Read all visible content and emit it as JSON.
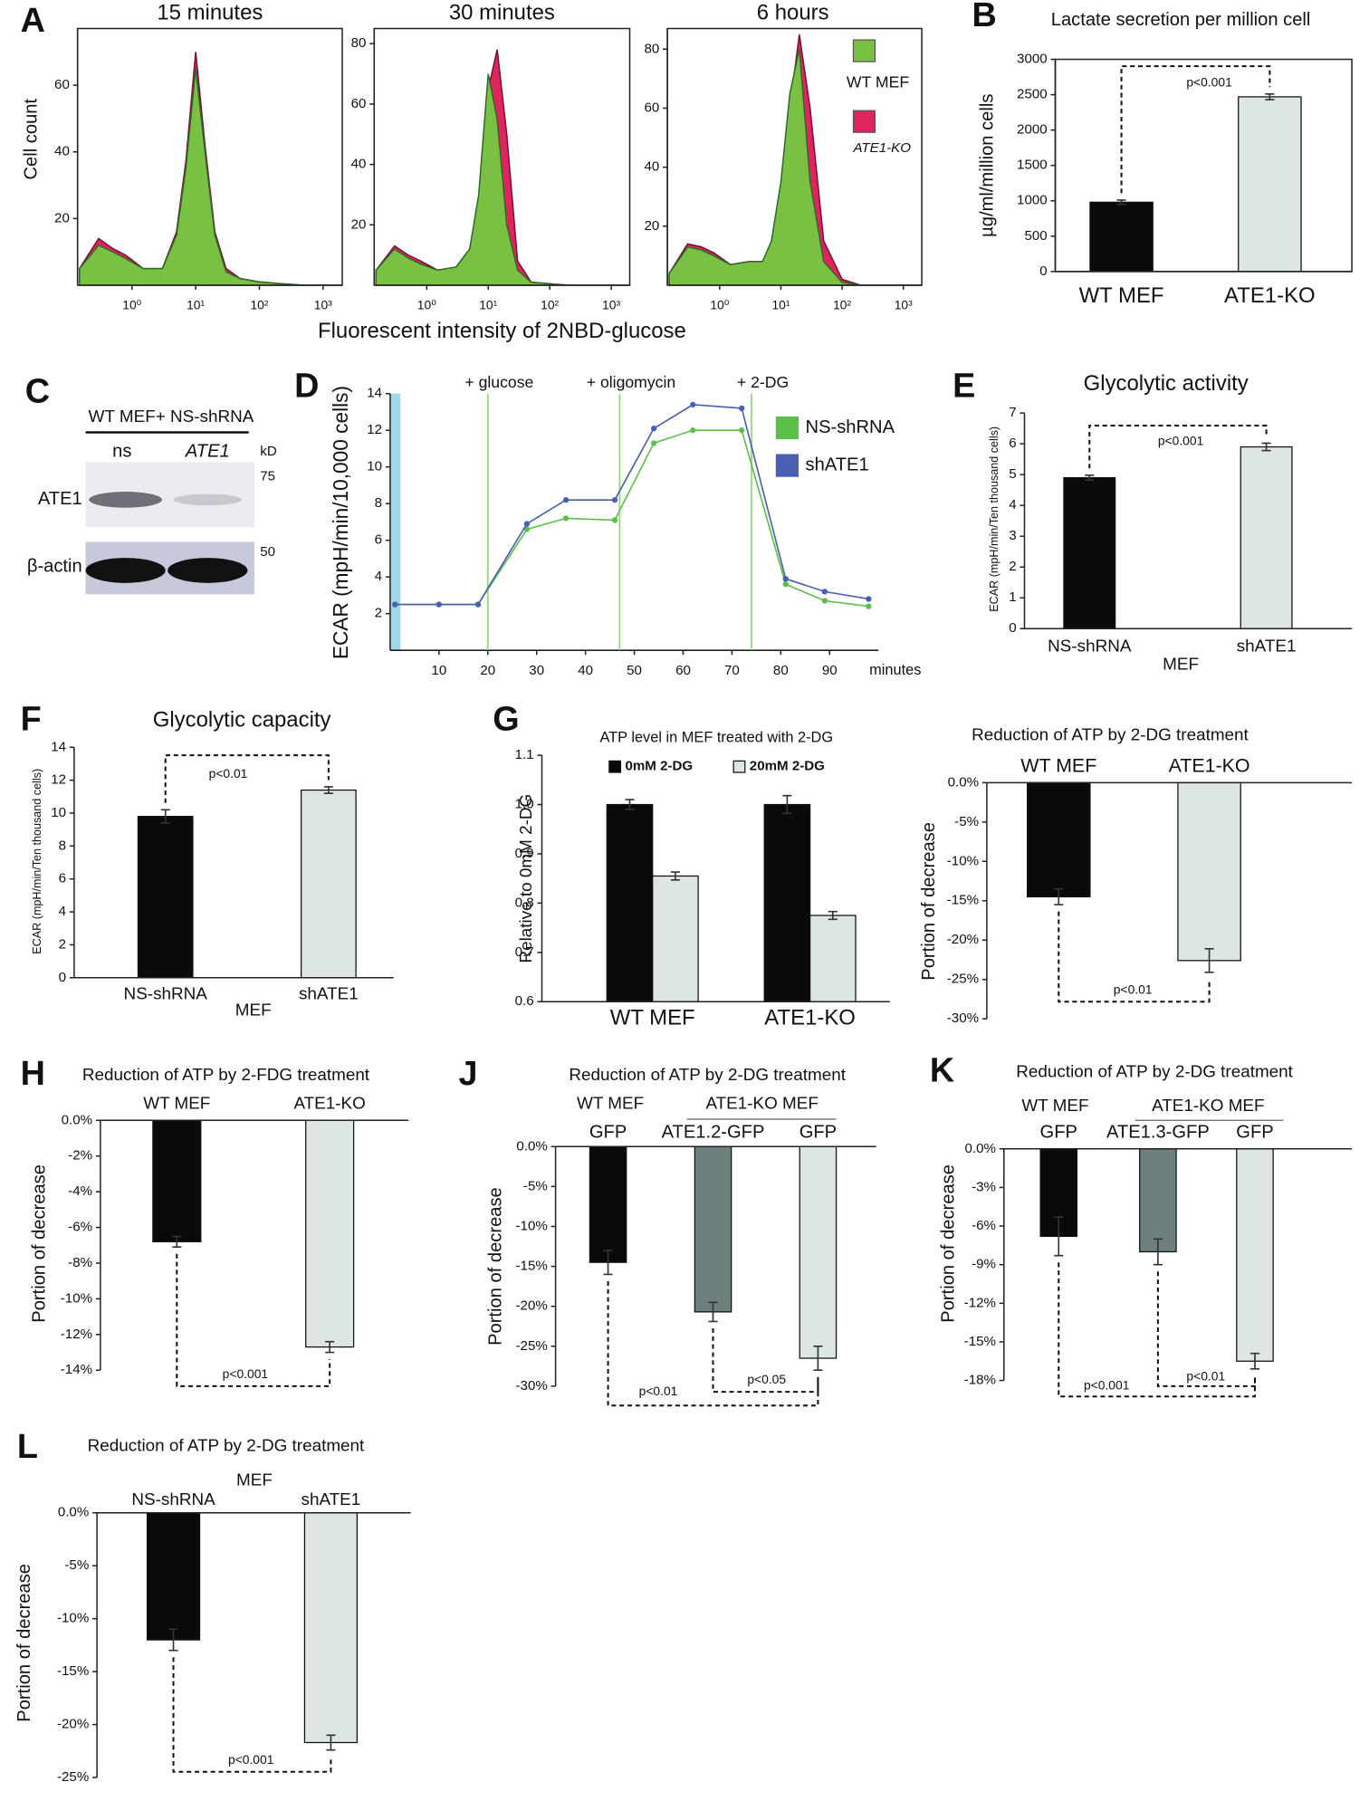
{
  "chart_data": [
    {
      "panel": "A",
      "type": "area",
      "title": "15 minutes",
      "ylabel": "Cell count",
      "xscale": "log",
      "x": [
        0.15,
        0.3,
        0.5,
        0.8,
        1.5,
        3,
        5,
        7,
        10,
        14,
        20,
        30,
        50,
        100,
        200,
        500,
        2000
      ],
      "series": [
        {
          "color": "#7ac143",
          "values": [
            5,
            12,
            10,
            8,
            5,
            5,
            15,
            35,
            65,
            40,
            15,
            4,
            2,
            1,
            0.5,
            0,
            0
          ]
        },
        {
          "color": "#e0245e",
          "values": [
            5,
            14,
            11,
            9,
            5,
            5,
            16,
            37,
            70,
            42,
            16,
            5,
            2,
            1,
            0.5,
            0,
            0
          ]
        }
      ],
      "xlim": [
        0.14,
        2000
      ],
      "xticks": [
        {
          "value": 1,
          "label": "10⁰"
        },
        {
          "value": 10,
          "label": "10¹"
        },
        {
          "value": 100,
          "label": "10²"
        },
        {
          "value": 1000,
          "label": "10³"
        }
      ],
      "ylim": [
        0,
        77
      ],
      "yticks": [
        20,
        40,
        60
      ]
    },
    {
      "type": "area",
      "title": "30 minutes",
      "xlabel": "Fluorescent intensity of 2NBD-glucose",
      "xscale": "log",
      "x": [
        0.15,
        0.3,
        0.5,
        0.8,
        1.5,
        3,
        5,
        7,
        10,
        14,
        20,
        30,
        50,
        100,
        200,
        500,
        2000
      ],
      "series": [
        {
          "color": "#7ac143",
          "values": [
            5,
            12,
            9,
            7,
            5,
            6,
            12,
            30,
            70,
            55,
            20,
            5,
            1,
            0.5,
            0,
            0,
            0
          ]
        },
        {
          "color": "#e0245e",
          "values": [
            5,
            13,
            10,
            8,
            5,
            6,
            12,
            28,
            65,
            78,
            50,
            8,
            1,
            0.5,
            0,
            0,
            0
          ]
        }
      ],
      "xlim": [
        0.14,
        2000
      ],
      "xticks": [
        {
          "value": 1,
          "label": "10⁰"
        },
        {
          "value": 10,
          "label": "10¹"
        },
        {
          "value": 100,
          "label": "10²"
        },
        {
          "value": 1000,
          "label": "10³"
        }
      ],
      "ylim": [
        0,
        85
      ],
      "yticks": [
        20,
        40,
        60,
        80
      ]
    },
    {
      "type": "area",
      "title": "6 hours",
      "xscale": "log",
      "x": [
        0.15,
        0.3,
        0.5,
        0.8,
        1.5,
        3,
        5,
        7,
        10,
        14,
        20,
        30,
        50,
        100,
        200,
        500,
        2000
      ],
      "series": [
        {
          "name": "WT MEF",
          "color": "#7ac143",
          "values": [
            4,
            13,
            12,
            10,
            7,
            8,
            8,
            15,
            35,
            65,
            80,
            35,
            8,
            1,
            0,
            0,
            0
          ]
        },
        {
          "name": "ATE1-KO",
          "color": "#e0245e",
          "values": [
            4,
            14,
            13,
            11,
            7,
            8,
            8,
            13,
            30,
            60,
            85,
            60,
            15,
            2,
            0,
            0,
            0
          ]
        }
      ],
      "xlim": [
        0.14,
        2000
      ],
      "xticks": [
        {
          "value": 1,
          "label": "10⁰"
        },
        {
          "value": 10,
          "label": "10¹"
        },
        {
          "value": 100,
          "label": "10²"
        },
        {
          "value": 1000,
          "label": "10³"
        }
      ],
      "ylim": [
        0,
        87
      ],
      "yticks": [
        20,
        40,
        60,
        80
      ]
    },
    {
      "panel": "B",
      "type": "bar",
      "title": "Lactate secretion per million cell",
      "ylabel": "µg/ml/million cells",
      "categories": [
        "WT MEF",
        "ATE1-KO"
      ],
      "values": [
        980,
        2470
      ],
      "errors": [
        30,
        40
      ],
      "colors": [
        "#0a0a0a",
        "#dde6e3"
      ],
      "ylim": [
        0,
        3000
      ],
      "yticks": [
        0,
        500,
        1000,
        1500,
        2000,
        2500,
        3000
      ],
      "annotations": [
        "p<0.001"
      ]
    },
    {
      "panel": "C",
      "type": "blot",
      "header": "WT MEF+ NS-shRNA",
      "lanes": [
        "ns",
        "ATE1"
      ],
      "unit": "kD",
      "markers": [
        75,
        50
      ],
      "rows": [
        "ATE1",
        "β-actin"
      ]
    },
    {
      "panel": "D",
      "type": "line",
      "ylabel": "ECAR (mpH/min/10,000 cells)",
      "xlabel": "minutes",
      "x": [
        1,
        10,
        18,
        28,
        36,
        46,
        54,
        62,
        72,
        81,
        89,
        98
      ],
      "series": [
        {
          "name": "NS-shRNA",
          "color": "#5cbf4a",
          "values": [
            2.5,
            2.5,
            2.5,
            6.6,
            7.2,
            7.1,
            11.3,
            12.0,
            12.0,
            3.6,
            2.7,
            2.4
          ]
        },
        {
          "name": "shATE1",
          "color": "#4a5fb4",
          "values": [
            2.5,
            2.5,
            2.5,
            6.9,
            8.2,
            8.2,
            12.1,
            13.4,
            13.2,
            3.9,
            3.2,
            2.8
          ]
        }
      ],
      "annotations": [
        {
          "text": "+ glucose",
          "x": 20
        },
        {
          "text": "+ oligomycin",
          "x": 47
        },
        {
          "text": "+ 2-DG",
          "x": 74
        }
      ],
      "xlim": [
        0,
        100
      ],
      "xticks": [
        10,
        20,
        30,
        40,
        50,
        60,
        70,
        80,
        90
      ],
      "ylim": [
        0,
        14
      ],
      "yticks": [
        2,
        4,
        6,
        8,
        10,
        12,
        14
      ]
    },
    {
      "panel": "E",
      "type": "bar",
      "title": "Glycolytic activity",
      "ylabel": "ECAR (mpH/min/Ten thousand cells)",
      "categories": [
        "NS-shRNA",
        "shATE1"
      ],
      "group_labels": [
        "MEF"
      ],
      "values": [
        4.9,
        5.9
      ],
      "errors": [
        0.08,
        0.12
      ],
      "colors": [
        "#0a0a0a",
        "#dde6e3"
      ],
      "ylim": [
        0,
        7
      ],
      "yticks": [
        0,
        1,
        2,
        3,
        4,
        5,
        6,
        7
      ],
      "annotations": [
        "p<0.001"
      ]
    },
    {
      "panel": "F",
      "type": "bar",
      "title": "Glycolytic capacity",
      "ylabel": "ECAR (mpH/min/Ten thousand cells)",
      "categories": [
        "NS-shRNA",
        "shATE1"
      ],
      "group_labels": [
        "MEF"
      ],
      "values": [
        9.8,
        11.4
      ],
      "errors": [
        0.4,
        0.2
      ],
      "colors": [
        "#0a0a0a",
        "#dde6e3"
      ],
      "ylim": [
        0,
        14
      ],
      "yticks": [
        0,
        2,
        4,
        6,
        8,
        10,
        12,
        14
      ],
      "annotations": [
        "p<0.01"
      ]
    },
    {
      "panel": "G",
      "type": "bar",
      "title": "ATP level in MEF treated with 2-DG",
      "ylabel": "Relative to 0mM 2-DG",
      "categories": [
        "WT MEF",
        "ATE1-KO"
      ],
      "series": [
        {
          "name": "0mM 2-DG",
          "color": "#0a0a0a",
          "values": [
            1.0,
            1.0
          ],
          "errors": [
            0.01,
            0.018
          ]
        },
        {
          "name": "20mM 2-DG",
          "color": "#dde6e3",
          "values": [
            0.855,
            0.775
          ],
          "errors": [
            0.008,
            0.008
          ]
        }
      ],
      "ylim": [
        0.6,
        1.1
      ],
      "yticks": [
        0.6,
        0.7,
        0.8,
        0.9,
        {
          "value": 1,
          "label": "1.0"
        },
        1.1
      ]
    },
    {
      "type": "bar",
      "title": "Reduction of ATP by 2-DG treatment",
      "ylabel": "Portion of decrease",
      "categories": [
        "WT MEF",
        "ATE1-KO"
      ],
      "values": [
        -14.5,
        -22.6
      ],
      "errors": [
        1.0,
        1.5
      ],
      "colors": [
        "#0a0a0a",
        "#dde6e3"
      ],
      "ylim": [
        -30,
        0
      ],
      "yticks": [
        {
          "value": 0,
          "label": "0.0%"
        },
        {
          "value": -5,
          "label": "-5%"
        },
        {
          "value": -10,
          "label": "-10%"
        },
        {
          "value": -15,
          "label": "-15%"
        },
        {
          "value": -20,
          "label": "-20%"
        },
        {
          "value": -25,
          "label": "-25%"
        },
        {
          "value": -30,
          "label": "-30%"
        }
      ],
      "annotations": [
        "p<0.01"
      ]
    },
    {
      "panel": "H",
      "type": "bar",
      "title": "Reduction of ATP by 2-FDG treatment",
      "ylabel": "Portion of decrease",
      "categories": [
        "WT MEF",
        "ATE1-KO"
      ],
      "values": [
        -6.8,
        -12.7
      ],
      "errors": [
        0.3,
        0.3
      ],
      "colors": [
        "#0a0a0a",
        "#dde6e3"
      ],
      "ylim": [
        -14,
        0
      ],
      "yticks": [
        {
          "value": 0,
          "label": "0.0%"
        },
        {
          "value": -2,
          "label": "-2%"
        },
        {
          "value": -4,
          "label": "-4%"
        },
        {
          "value": -6,
          "label": "-6%"
        },
        {
          "value": -8,
          "label": "-8%"
        },
        {
          "value": -10,
          "label": "-10%"
        },
        {
          "value": -12,
          "label": "-12%"
        },
        {
          "value": -14,
          "label": "-14%"
        }
      ],
      "annotations": [
        "p<0.001"
      ]
    },
    {
      "panel": "J",
      "type": "bar",
      "title": "Reduction of ATP by 2-DG treatment",
      "ylabel": "Portion of decrease",
      "categories": [
        "GFP",
        "ATE1.2-GFP",
        "GFP"
      ],
      "group_labels": [
        "WT MEF",
        "ATE1-KO MEF"
      ],
      "values": [
        -14.5,
        -20.7,
        -26.5
      ],
      "errors": [
        1.5,
        1.2,
        1.5
      ],
      "colors": [
        "#0a0a0a",
        "#6e807d",
        "#dde6e3"
      ],
      "ylim": [
        -30,
        0
      ],
      "yticks": [
        {
          "value": 0,
          "label": "0.0%"
        },
        {
          "value": -5,
          "label": "-5%"
        },
        {
          "value": -10,
          "label": "-10%"
        },
        {
          "value": -15,
          "label": "-15%"
        },
        {
          "value": -20,
          "label": "-20%"
        },
        {
          "value": -25,
          "label": "-25%"
        },
        {
          "value": -30,
          "label": "-30%"
        }
      ],
      "annotations": [
        "p<0.01",
        "p<0.05"
      ]
    },
    {
      "panel": "K",
      "type": "bar",
      "title": "Reduction of ATP by 2-DG treatment",
      "ylabel": "Portion of decrease",
      "categories": [
        "GFP",
        "ATE1.3-GFP",
        "GFP"
      ],
      "group_labels": [
        "WT MEF",
        "ATE1-KO MEF"
      ],
      "values": [
        -6.8,
        -8.0,
        -16.5
      ],
      "errors": [
        1.5,
        1.0,
        0.6
      ],
      "colors": [
        "#0a0a0a",
        "#6e807d",
        "#dde6e3"
      ],
      "ylim": [
        -18,
        0
      ],
      "yticks": [
        {
          "value": 0,
          "label": "0.0%"
        },
        {
          "value": -3,
          "label": "-3%"
        },
        {
          "value": -6,
          "label": "-6%"
        },
        {
          "value": -9,
          "label": "-9%"
        },
        {
          "value": -12,
          "label": "-12%"
        },
        {
          "value": -15,
          "label": "-15%"
        },
        {
          "value": -18,
          "label": "-18%"
        }
      ],
      "annotations": [
        "p<0.001",
        "p<0.01"
      ]
    },
    {
      "panel": "L",
      "type": "bar",
      "title": "Reduction of ATP by 2-DG treatment",
      "ylabel": "Portion of decrease",
      "categories": [
        "NS-shRNA",
        "shATE1"
      ],
      "group_labels": [
        "MEF"
      ],
      "values": [
        -12.0,
        -21.7
      ],
      "errors": [
        1.0,
        0.7
      ],
      "colors": [
        "#0a0a0a",
        "#dde6e3"
      ],
      "ylim": [
        -25,
        0
      ],
      "yticks": [
        {
          "value": 0,
          "label": "0.0%"
        },
        {
          "value": -5,
          "label": "-5%"
        },
        {
          "value": -10,
          "label": "-10%"
        },
        {
          "value": -15,
          "label": "-15%"
        },
        {
          "value": -20,
          "label": "-20%"
        },
        {
          "value": -25,
          "label": "-25%"
        }
      ],
      "annotations": [
        "p<0.001"
      ]
    }
  ]
}
